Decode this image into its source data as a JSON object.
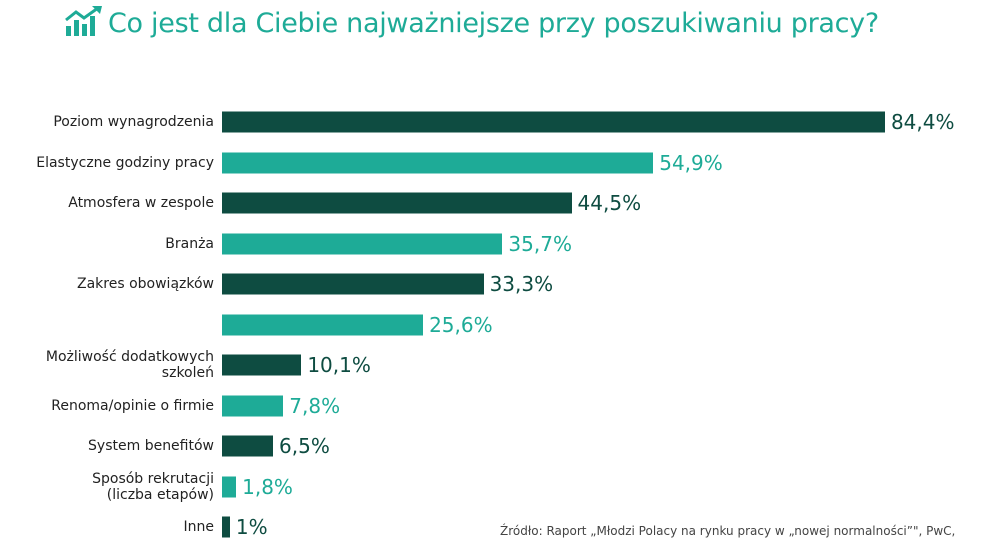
{
  "chart_data": {
    "type": "bar",
    "orientation": "horizontal",
    "title": "Co jest dla Ciebie najważniejsze przy poszukiwaniu pracy?",
    "categories": [
      "Poziom wynagrodzenia",
      "Elastyczne godziny pracy",
      "Atmosfera w zespole",
      "Branża",
      "Zakres obowiązków",
      null,
      "Możliwość dodatkowych\nszkoleń",
      "Renoma/opinie o firmie",
      "System benefitów",
      "Sposób rekrutacji\n(liczba etapów)",
      "Inne"
    ],
    "values": [
      84.4,
      54.9,
      44.5,
      35.7,
      33.3,
      25.6,
      10.1,
      7.8,
      6.5,
      1.8,
      1
    ],
    "value_labels": [
      "84,4%",
      "54,9%",
      "44,5%",
      "35,7%",
      "33,3%",
      "25,6%",
      "10,1%",
      "7,8%",
      "6,5%",
      "1,8%",
      "1%"
    ],
    "colors": [
      "#0e4c41",
      "#1eab97",
      "#0e4c41",
      "#1eab97",
      "#0e4c41",
      "#1eab97",
      "#0e4c41",
      "#1eab97",
      "#0e4c41",
      "#1eab97",
      "#0e4c41"
    ],
    "source": "Źródło: Raport „Młodzi Polacy na rynku pracy w „nowej normalności”\", PwC,"
  }
}
